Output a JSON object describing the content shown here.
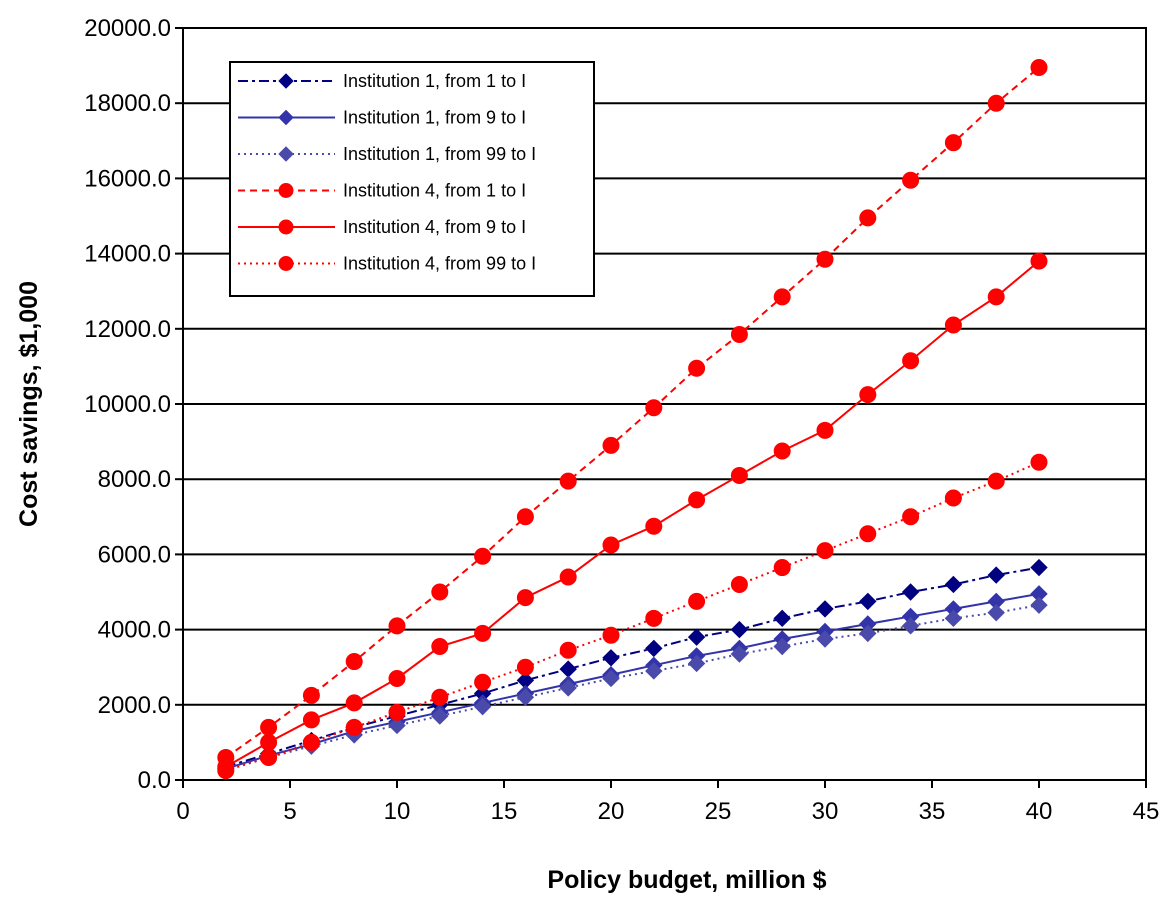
{
  "chart_data": {
    "type": "line",
    "title": "",
    "xlabel": "Policy budget, million $",
    "ylabel": "Cost savings, $1,000",
    "xlim": [
      0,
      45
    ],
    "ylim": [
      0,
      20000
    ],
    "x_ticks": [
      "0",
      "5",
      "10",
      "15",
      "20",
      "25",
      "30",
      "35",
      "40",
      "45"
    ],
    "y_ticks": [
      "0.0",
      "2000.0",
      "4000.0",
      "6000.0",
      "8000.0",
      "10000.0",
      "12000.0",
      "14000.0",
      "16000.0",
      "18000.0",
      "20000.0"
    ],
    "grid": "horizontal",
    "legend_position": "top-left",
    "x": [
      2,
      4,
      6,
      8,
      10,
      12,
      14,
      16,
      18,
      20,
      22,
      24,
      26,
      28,
      30,
      32,
      34,
      36,
      38,
      40
    ],
    "series": [
      {
        "name": "Institution 1, from 1 to I",
        "color": "#000080",
        "marker": "diamond",
        "line_style": "dashdot",
        "values": [
          350,
          700,
          1050,
          1400,
          1700,
          2000,
          2300,
          2650,
          2950,
          3250,
          3500,
          3800,
          4000,
          4300,
          4550,
          4750,
          5000,
          5200,
          5450,
          5650
        ]
      },
      {
        "name": "Institution 1, from 9 to I",
        "color": "#3333aa",
        "marker": "diamond",
        "line_style": "solid",
        "values": [
          300,
          650,
          950,
          1300,
          1550,
          1800,
          2050,
          2300,
          2550,
          2800,
          3050,
          3300,
          3500,
          3750,
          3950,
          4150,
          4350,
          4550,
          4750,
          4950
        ]
      },
      {
        "name": "Institution 1, from 99 to I",
        "color": "#4a4aaa",
        "marker": "diamond",
        "line_style": "dotted",
        "values": [
          300,
          600,
          900,
          1200,
          1450,
          1700,
          1950,
          2200,
          2450,
          2700,
          2900,
          3100,
          3350,
          3550,
          3750,
          3900,
          4100,
          4300,
          4450,
          4650
        ]
      },
      {
        "name": "Institution 4, from 1 to I",
        "color": "#ff0000",
        "marker": "circle",
        "line_style": "dashed",
        "values": [
          600,
          1400,
          2250,
          3150,
          4100,
          5000,
          5950,
          7000,
          7950,
          8900,
          9900,
          10950,
          11850,
          12850,
          13850,
          14950,
          15950,
          16950,
          18000,
          18950
        ]
      },
      {
        "name": "Institution 4, from 9 to I",
        "color": "#ff0000",
        "marker": "circle",
        "line_style": "solid",
        "values": [
          350,
          1000,
          1600,
          2050,
          2700,
          3550,
          3900,
          4850,
          5400,
          6250,
          6750,
          7450,
          8100,
          8750,
          9300,
          10250,
          11150,
          12100,
          12850,
          13800
        ]
      },
      {
        "name": "Institution 4, from 99 to I",
        "color": "#ff0000",
        "marker": "circle",
        "line_style": "dotted",
        "values": [
          250,
          600,
          1000,
          1400,
          1800,
          2200,
          2600,
          3000,
          3450,
          3850,
          4300,
          4750,
          5200,
          5650,
          6100,
          6550,
          7000,
          7500,
          7950,
          8450
        ]
      }
    ]
  }
}
